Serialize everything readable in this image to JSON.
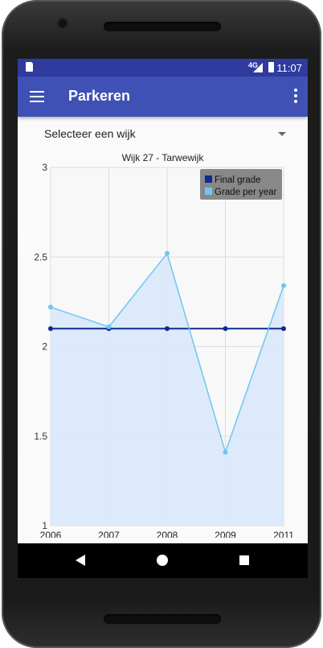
{
  "statusbar": {
    "network": "4G",
    "time": "11:07"
  },
  "appbar": {
    "title": "Parkeren"
  },
  "spinner": {
    "label": "Selecteer een wijk"
  },
  "chart_data": {
    "type": "line",
    "title": "Wijk 27 - Tarwewijk",
    "categories": [
      "2006",
      "2007",
      "2008",
      "2009",
      "2011"
    ],
    "ylim": [
      1,
      3
    ],
    "yticks": [
      "1",
      "1.5",
      "2",
      "2.5",
      "3"
    ],
    "grid": true,
    "legend_placement": "top-right",
    "series": [
      {
        "name": "Final grade",
        "values": [
          2.1,
          2.1,
          2.1,
          2.1,
          2.1
        ],
        "color": "#0d2b8f",
        "fill": false
      },
      {
        "name": "Grade per year",
        "values": [
          2.22,
          2.11,
          2.52,
          1.41,
          2.34
        ],
        "color": "#6fc6f0",
        "fill": true,
        "fill_color": "#d8e8fb"
      }
    ],
    "legend_background": "#888888"
  },
  "icons": {
    "menu": "menu-icon",
    "more": "more-vert-icon",
    "back": "back-icon",
    "home": "home-icon",
    "recent": "recent-apps-icon"
  }
}
